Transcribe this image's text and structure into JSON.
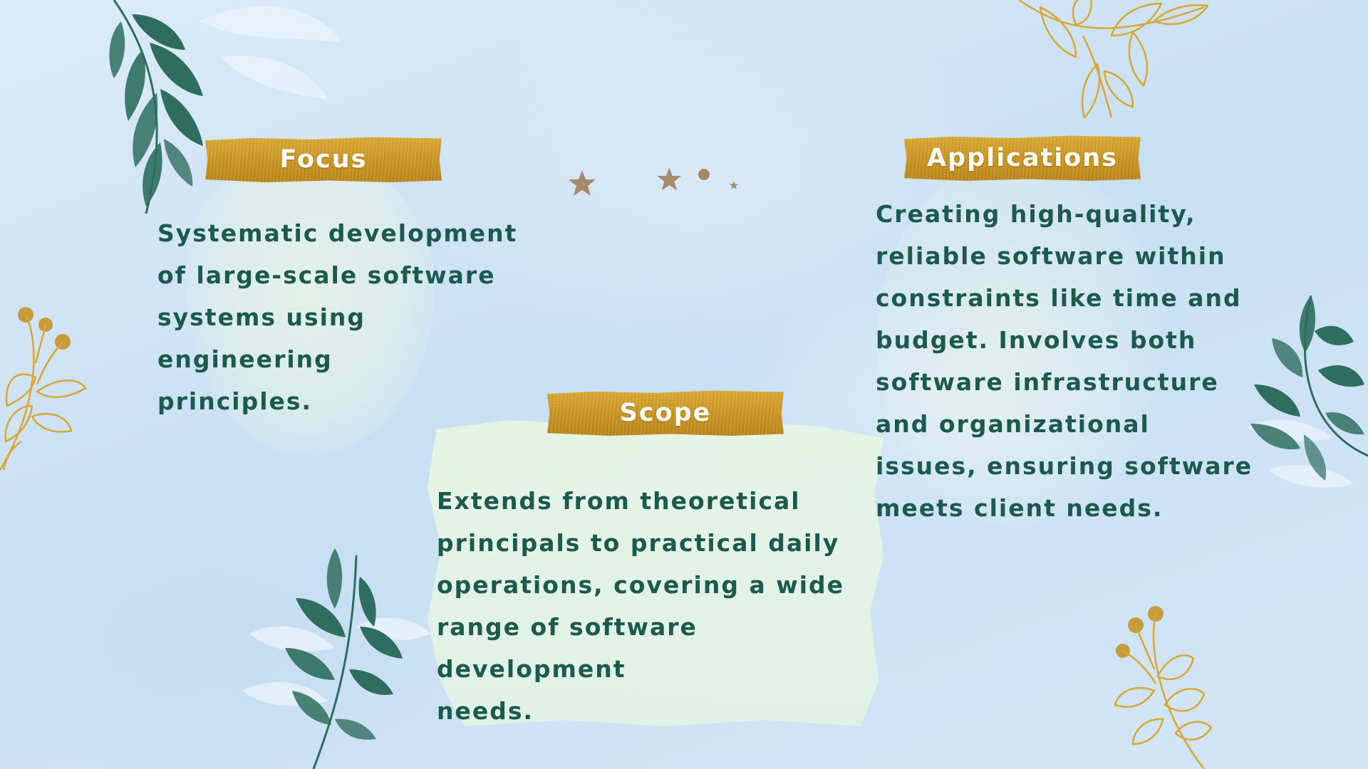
{
  "slide": {
    "focus": {
      "heading": "Focus",
      "body": "Systematic development\nof large-scale software\nsystems using engineering\nprinciples."
    },
    "applications": {
      "heading": "Applications",
      "body": "Creating high-quality,\nreliable software within\nconstraints like time and\nbudget. Involves both\nsoftware infrastructure\nand organizational\nissues, ensuring software\nmeets client needs."
    },
    "scope": {
      "heading": "Scope",
      "body": "Extends from theoretical\nprincipals to practical daily\noperations, covering a wide\nrange of software development\nneeds."
    }
  },
  "colors": {
    "text": "#1c5a4e",
    "banner_gold": "#c99522",
    "leaf_green": "#2f6e5e",
    "branch_gold": "#d9a734",
    "background": "#cfe3f5"
  },
  "decorations": {
    "icons": [
      "leaf-branch-green-icon",
      "leaf-branch-gold-outline-icon",
      "gold-berry-branch-icon",
      "star-icon",
      "dot-icon"
    ]
  }
}
